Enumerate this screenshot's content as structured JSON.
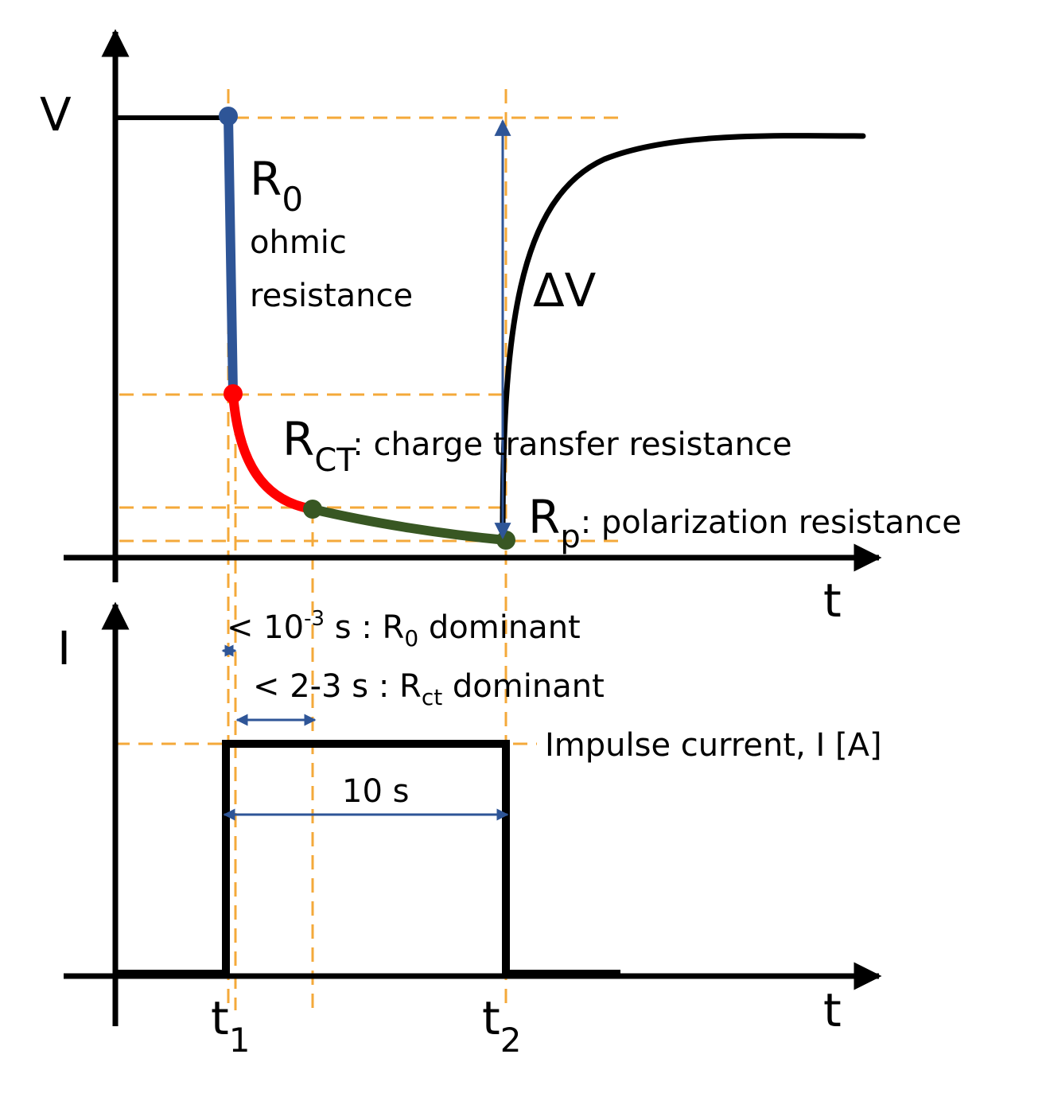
{
  "diagram": {
    "v_axis_label": "V",
    "i_axis_label": "I",
    "t_axis_label_top": "t",
    "t_axis_label_bottom": "t",
    "r0": {
      "main": "R",
      "sub": "0",
      "desc_line1": "ohmic",
      "desc_line2": "resistance"
    },
    "rct": {
      "main": "R",
      "sub": "CT",
      "desc": ": charge transfer resistance"
    },
    "rp": {
      "main": "R",
      "sub": "p",
      "desc": ": polarization resistance"
    },
    "delta_v": "ΔV",
    "r0_dominant": {
      "prefix": "< 10",
      "exp": "-3",
      "mid": " s : R",
      "sub": "0",
      "suffix": " dominant"
    },
    "rct_dominant": {
      "prefix": "< 2-3 s : R",
      "sub": "ct",
      "suffix": " dominant"
    },
    "impulse_label": "Impulse current, I [A]",
    "duration_label": "10 s",
    "t1": {
      "main": "t",
      "sub": "1"
    },
    "t2": {
      "main": "t",
      "sub": "2"
    },
    "colors": {
      "axis": "#000000",
      "guide": "#F4A93A",
      "ohmic": "#2E5597",
      "charge_transfer": "#FF0000",
      "polarization": "#385723",
      "arrow": "#2E5597"
    }
  }
}
